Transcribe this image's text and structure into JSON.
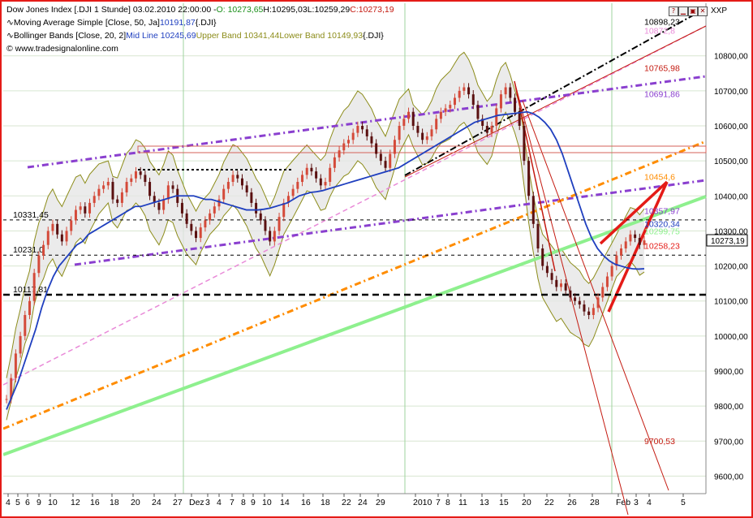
{
  "header": {
    "row1": {
      "prefix": "Dow Jones Index [.DJI  1 Stunde] 03.02.2010 22:00:00 - ",
      "o": "O: 10273,65",
      "h": " H:10295,03",
      "l": " L:10259,29",
      "c": " C:10273,19"
    },
    "row2": {
      "name": "Moving Average Simple [Close, 50, Ja]",
      "value": " 10191,87",
      "sym": " {.DJI}"
    },
    "row3": {
      "name": "Bollinger Bands [Close, 20, 2]",
      "mid": " Mid Line 10245,69",
      "upper": " Upper Band 10341,44",
      "lower": " Lower Band 10149,93",
      "sym": " {.DJI}"
    },
    "row4": "© www.tradesignalonline.com",
    "symbol": "XXP"
  },
  "colors": {
    "price": "#d44a3a",
    "price_down": "#8b1a1a",
    "sma": "#1f3fbf",
    "bb_band": "#8c8c1a",
    "bb_mid": "#6a7fd8",
    "purple": "#8a3fcf",
    "orange": "#ff8c00",
    "green": "#8ef08e",
    "pink": "#e98ad8",
    "red": "#e41b17",
    "dark_red": "#c41a10"
  },
  "chart_data": {
    "type": "line",
    "title": "Dow Jones Index [.DJI  1 Stunde]",
    "ylim": [
      9550,
      10950
    ],
    "y_ticks": [
      9600,
      9700,
      9800,
      9900,
      10000,
      10100,
      10200,
      10300,
      10400,
      10500,
      10600,
      10700,
      10800
    ],
    "y_tick_labels": [
      "9600,00",
      "9700,00",
      "9800,00",
      "9900,00",
      "10000,00",
      "10100,00",
      "10200,00",
      "10300,00",
      "10400,00",
      "10500,00",
      "10600,00",
      "10700,00",
      "10800,00"
    ],
    "x_tick_labels": [
      "4",
      "5",
      "6",
      "9",
      "10",
      "12",
      "16",
      "18",
      "20",
      "24",
      "27",
      "Dez",
      "3",
      "4",
      "7",
      "8",
      "9",
      "10",
      "14",
      "16",
      "18",
      "22",
      "24",
      "29",
      "2010",
      "7",
      "8",
      "11",
      "13",
      "15",
      "20",
      "22",
      "26",
      "28",
      "Feb",
      "3",
      "4",
      "5"
    ],
    "price_label": "10273,19",
    "series": [
      {
        "name": "Dow Jones Index",
        "values": [
          9820,
          9880,
          9950,
          10000,
          10060,
          10100,
          10180,
          10230,
          10260,
          10300,
          10320,
          10290,
          10270,
          10300,
          10330,
          10360,
          10370,
          10350,
          10380,
          10400,
          10420,
          10430,
          10440,
          10390,
          10380,
          10410,
          10440,
          10450,
          10470,
          10460,
          10440,
          10400,
          10380,
          10360,
          10390,
          10430,
          10420,
          10380,
          10350,
          10320,
          10300,
          10280,
          10310,
          10330,
          10350,
          10370,
          10390,
          10420,
          10440,
          10460,
          10450,
          10430,
          10410,
          10380,
          10350,
          10330,
          10300,
          10270,
          10300,
          10340,
          10380,
          10400,
          10420,
          10440,
          10460,
          10480,
          10470,
          10450,
          10430,
          10440,
          10480,
          10510,
          10530,
          10550,
          10560,
          10580,
          10600,
          10590,
          10570,
          10550,
          10520,
          10500,
          10480,
          10520,
          10560,
          10600,
          10620,
          10640,
          10600,
          10580,
          10560,
          10570,
          10590,
          10620,
          10640,
          10650,
          10660,
          10680,
          10700,
          10710,
          10690,
          10660,
          10620,
          10600,
          10580,
          10600,
          10650,
          10690,
          10710,
          10680,
          10640,
          10600,
          10500,
          10400,
          10320,
          10250,
          10200,
          10180,
          10160,
          10140,
          10150,
          10130,
          10110,
          10100,
          10090,
          10070,
          10060,
          10080,
          10110,
          10140,
          10170,
          10200,
          10230,
          10250,
          10270,
          10290,
          10280,
          10260,
          10273
        ]
      },
      {
        "name": "Moving Average Simple [Close, 50, Ja]",
        "values": [
          9790,
          9830,
          9870,
          9920,
          9970,
          10020,
          10080,
          10130,
          10170,
          10200,
          10220,
          10240,
          10260,
          10270,
          10290,
          10300,
          10310,
          10320,
          10330,
          10340,
          10350,
          10360,
          10370,
          10370,
          10375,
          10380,
          10385,
          10390,
          10395,
          10400,
          10400,
          10400,
          10400,
          10395,
          10390,
          10390,
          10385,
          10380,
          10375,
          10370,
          10365,
          10360,
          10360,
          10360,
          10362,
          10365,
          10370,
          10375,
          10380,
          10390,
          10400,
          10405,
          10410,
          10412,
          10415,
          10420,
          10425,
          10430,
          10435,
          10440,
          10445,
          10450,
          10455,
          10460,
          10465,
          10470,
          10475,
          10480,
          10490,
          10500,
          10510,
          10520,
          10530,
          10540,
          10550,
          10560,
          10570,
          10580,
          10590,
          10600,
          10610,
          10615,
          10620,
          10625,
          10630,
          10632,
          10634,
          10636,
          10638,
          10640,
          10635,
          10625,
          10610,
          10590,
          10560,
          10520,
          10470,
          10420,
          10370,
          10320,
          10280,
          10250,
          10230,
          10215,
          10205,
          10200,
          10195,
          10192,
          10191,
          10192
        ]
      },
      {
        "name": "Upper Band",
        "values": [
          10341
        ]
      },
      {
        "name": "Lower Band",
        "values": [
          10150
        ]
      }
    ],
    "annotations": [
      {
        "label": "10898,23",
        "y": 10898.23,
        "color": "#000000"
      },
      {
        "label": "10872,8",
        "y": 10872.8,
        "color": "#e98ad8"
      },
      {
        "label": "10765,98",
        "y": 10765.98,
        "color": "#c41a10"
      },
      {
        "label": "10691,86",
        "y": 10691.86,
        "color": "#8a3fcf"
      },
      {
        "label": "10454,6",
        "y": 10454.6,
        "color": "#ff8c00"
      },
      {
        "label": "10357,97",
        "y": 10357.97,
        "color": "#8a3fcf"
      },
      {
        "label": "10320,34",
        "y": 10320.34,
        "color": "#1f3fbf"
      },
      {
        "label": "10299,75",
        "y": 10299.75,
        "color": "#8ef08e"
      },
      {
        "label": "10258,23",
        "y": 10258.23,
        "color": "#e41b17"
      },
      {
        "label": "9700,53",
        "y": 9700.53,
        "color": "#c41a10"
      }
    ],
    "horizontal_levels": [
      {
        "label": "10331,45",
        "y": 10331.45,
        "style": "dashed"
      },
      {
        "label": "10231,0",
        "y": 10231.0,
        "style": "dashed"
      },
      {
        "label": "10117,81",
        "y": 10117.81,
        "style": "dashed-bold"
      }
    ],
    "grid": true,
    "legend": "top-left"
  }
}
